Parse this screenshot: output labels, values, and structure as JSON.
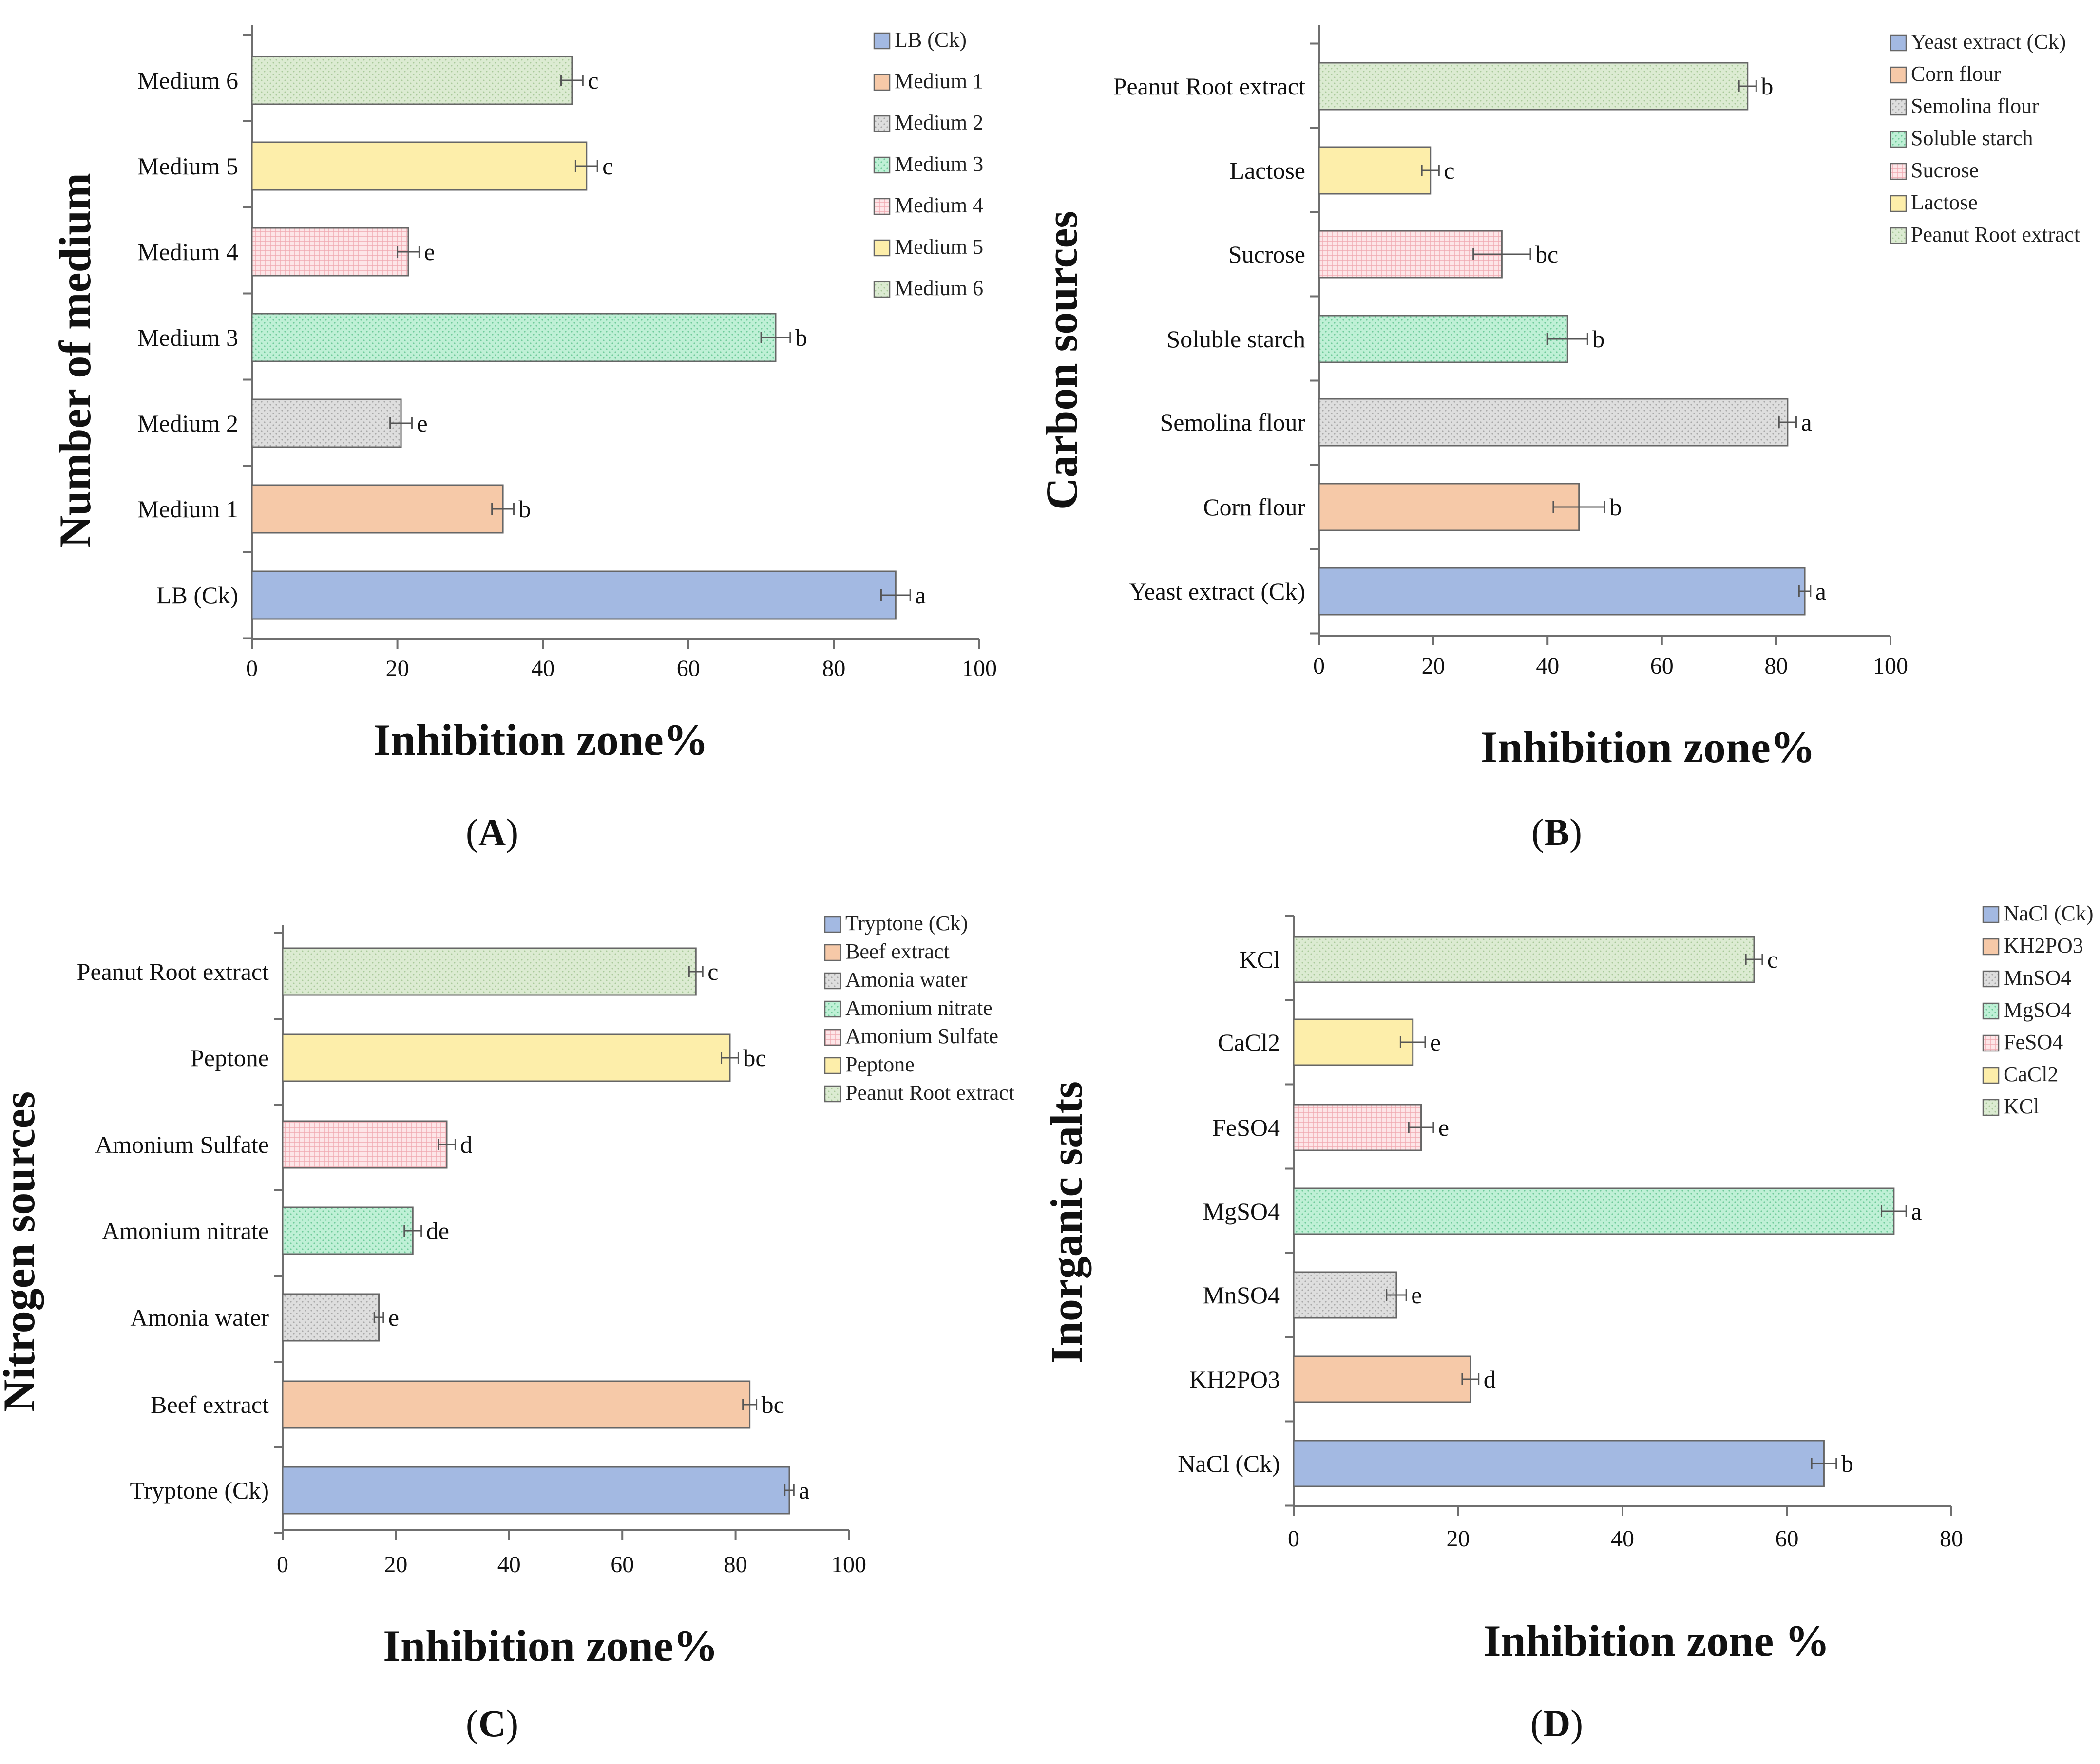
{
  "chart_data": [
    {
      "panel": "A",
      "type": "bar",
      "orientation": "horizontal",
      "categories": [
        "LB (Ck)",
        "Medium 1",
        "Medium 2",
        "Medium 3",
        "Medium 4",
        "Medium 5",
        "Medium 6"
      ],
      "values": [
        88.5,
        34.5,
        20.5,
        72,
        21.5,
        46,
        44
      ],
      "errors": [
        2,
        1.5,
        1.5,
        2,
        1.5,
        1.5,
        1.5
      ],
      "significance": [
        "a",
        "b",
        "e",
        "b",
        "e",
        "c",
        "c"
      ],
      "colors": [
        "#a3b9e2",
        "#f6c9a8",
        "#d7d7d7",
        "#b6ead0",
        "#f9d2d6",
        "#fdeeaa",
        "#d6e7cc"
      ],
      "patterns": [
        "solid",
        "solid",
        "dots",
        "dots",
        "grid",
        "solid",
        "dots"
      ],
      "legend": [
        "LB (Ck)",
        "Medium 1",
        "Medium 2",
        "Medium 3",
        "Medium 4",
        "Medium 5",
        "Medium 6"
      ],
      "xlabel": "Inhibition zone%",
      "ylabel": "Number of medium",
      "xlim": [
        0,
        100
      ],
      "xticks": [
        0,
        20,
        40,
        60,
        80,
        100
      ],
      "label": "A"
    },
    {
      "panel": "B",
      "type": "bar",
      "orientation": "horizontal",
      "categories": [
        "Yeast extract (Ck)",
        "Corn flour",
        "Semolina flour",
        "Soluble starch",
        "Sucrose",
        "Lactose",
        "Peanut Root extract"
      ],
      "values": [
        85,
        45.5,
        82,
        43.5,
        32,
        19.5,
        75
      ],
      "errors": [
        1,
        4.5,
        1.5,
        3.5,
        5,
        1.5,
        1.5
      ],
      "significance": [
        "a",
        "b",
        "a",
        "b",
        "bc",
        "c",
        "b"
      ],
      "colors": [
        "#a3b9e2",
        "#f6c9a8",
        "#d7d7d7",
        "#b6ead0",
        "#f9d2d6",
        "#fdeeaa",
        "#d6e7cc"
      ],
      "patterns": [
        "solid",
        "solid",
        "dots",
        "dots",
        "grid",
        "solid",
        "dots"
      ],
      "legend": [
        "Yeast extract (Ck)",
        "Corn flour",
        "Semolina flour",
        "Soluble starch",
        "Sucrose",
        "Lactose",
        "Peanut Root extract"
      ],
      "xlabel": "Inhibition zone%",
      "ylabel": "Carbon sources",
      "xlim": [
        0,
        100
      ],
      "xticks": [
        0,
        20,
        40,
        60,
        80,
        100
      ],
      "label": "B"
    },
    {
      "panel": "C",
      "type": "bar",
      "orientation": "horizontal",
      "categories": [
        "Tryptone (Ck)",
        "Beef extract",
        "Amonia water",
        "Amonium nitrate",
        "Amonium Sulfate",
        "Peptone",
        "Peanut Root extract"
      ],
      "values": [
        89.5,
        82.5,
        17,
        23,
        29,
        79,
        73
      ],
      "errors": [
        0.8,
        1.2,
        0.8,
        1.5,
        1.5,
        1.5,
        1.2
      ],
      "significance": [
        "a",
        "bc",
        "e",
        "de",
        "d",
        "bc",
        "c"
      ],
      "colors": [
        "#a3b9e2",
        "#f6c9a8",
        "#d7d7d7",
        "#b6ead0",
        "#f9d2d6",
        "#fdeeaa",
        "#d6e7cc"
      ],
      "patterns": [
        "solid",
        "solid",
        "dots",
        "dots",
        "grid",
        "solid",
        "dots"
      ],
      "legend": [
        "Tryptone (Ck)",
        "Beef extract",
        "Amonia water",
        "Amonium nitrate",
        "Amonium Sulfate",
        "Peptone",
        "Peanut Root extract"
      ],
      "xlabel": "Inhibition zone%",
      "ylabel": "Nitrogen sources",
      "xlim": [
        0,
        100
      ],
      "xticks": [
        0,
        20,
        40,
        60,
        80,
        100
      ],
      "label": "C"
    },
    {
      "panel": "D",
      "type": "bar",
      "orientation": "horizontal",
      "categories": [
        "NaCl (Ck)",
        "KH2PO3",
        "MnSO4",
        "MgSO4",
        "FeSO4",
        "CaCl2",
        "KCl"
      ],
      "values": [
        64.5,
        21.5,
        12.5,
        73,
        15.5,
        14.5,
        56
      ],
      "errors": [
        1.5,
        1,
        1.2,
        1.5,
        1.5,
        1.5,
        1
      ],
      "significance": [
        "b",
        "d",
        "e",
        "a",
        "e",
        "e",
        "c"
      ],
      "colors": [
        "#a3b9e2",
        "#f6c9a8",
        "#d7d7d7",
        "#b6ead0",
        "#f9d2d6",
        "#fdeeaa",
        "#d6e7cc"
      ],
      "patterns": [
        "solid",
        "solid",
        "dots",
        "dots",
        "grid",
        "solid",
        "dots"
      ],
      "legend": [
        "NaCl (Ck)",
        "KH2PO3",
        "MnSO4",
        "MgSO4",
        "FeSO4",
        "CaCl2",
        "KCl"
      ],
      "xlabel": "Inhibition zone %",
      "ylabel": "Inorganic salts",
      "xlim": [
        0,
        80
      ],
      "xticks": [
        0,
        20,
        40,
        60,
        80
      ],
      "label": "D"
    }
  ]
}
